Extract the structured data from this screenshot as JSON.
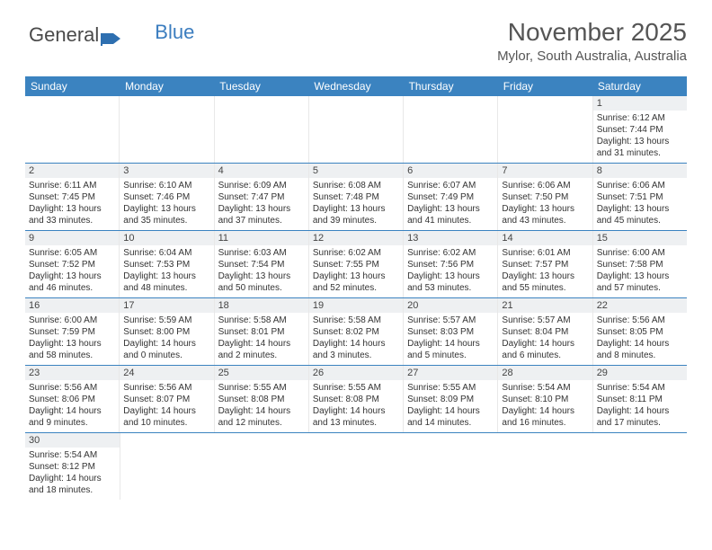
{
  "logo": {
    "part1": "General",
    "part2": "Blue"
  },
  "title": {
    "month": "November 2025",
    "location": "Mylor, South Australia, Australia"
  },
  "weekdays": [
    "Sunday",
    "Monday",
    "Tuesday",
    "Wednesday",
    "Thursday",
    "Friday",
    "Saturday"
  ],
  "colors": {
    "header_bg": "#3b83c0",
    "header_text": "#ffffff",
    "daynum_bg": "#eef0f2",
    "border": "#3b83c0",
    "text": "#333333"
  },
  "weeks": [
    [
      null,
      null,
      null,
      null,
      null,
      null,
      {
        "n": "1",
        "sr": "Sunrise: 6:12 AM",
        "ss": "Sunset: 7:44 PM",
        "d1": "Daylight: 13 hours",
        "d2": "and 31 minutes."
      }
    ],
    [
      {
        "n": "2",
        "sr": "Sunrise: 6:11 AM",
        "ss": "Sunset: 7:45 PM",
        "d1": "Daylight: 13 hours",
        "d2": "and 33 minutes."
      },
      {
        "n": "3",
        "sr": "Sunrise: 6:10 AM",
        "ss": "Sunset: 7:46 PM",
        "d1": "Daylight: 13 hours",
        "d2": "and 35 minutes."
      },
      {
        "n": "4",
        "sr": "Sunrise: 6:09 AM",
        "ss": "Sunset: 7:47 PM",
        "d1": "Daylight: 13 hours",
        "d2": "and 37 minutes."
      },
      {
        "n": "5",
        "sr": "Sunrise: 6:08 AM",
        "ss": "Sunset: 7:48 PM",
        "d1": "Daylight: 13 hours",
        "d2": "and 39 minutes."
      },
      {
        "n": "6",
        "sr": "Sunrise: 6:07 AM",
        "ss": "Sunset: 7:49 PM",
        "d1": "Daylight: 13 hours",
        "d2": "and 41 minutes."
      },
      {
        "n": "7",
        "sr": "Sunrise: 6:06 AM",
        "ss": "Sunset: 7:50 PM",
        "d1": "Daylight: 13 hours",
        "d2": "and 43 minutes."
      },
      {
        "n": "8",
        "sr": "Sunrise: 6:06 AM",
        "ss": "Sunset: 7:51 PM",
        "d1": "Daylight: 13 hours",
        "d2": "and 45 minutes."
      }
    ],
    [
      {
        "n": "9",
        "sr": "Sunrise: 6:05 AM",
        "ss": "Sunset: 7:52 PM",
        "d1": "Daylight: 13 hours",
        "d2": "and 46 minutes."
      },
      {
        "n": "10",
        "sr": "Sunrise: 6:04 AM",
        "ss": "Sunset: 7:53 PM",
        "d1": "Daylight: 13 hours",
        "d2": "and 48 minutes."
      },
      {
        "n": "11",
        "sr": "Sunrise: 6:03 AM",
        "ss": "Sunset: 7:54 PM",
        "d1": "Daylight: 13 hours",
        "d2": "and 50 minutes."
      },
      {
        "n": "12",
        "sr": "Sunrise: 6:02 AM",
        "ss": "Sunset: 7:55 PM",
        "d1": "Daylight: 13 hours",
        "d2": "and 52 minutes."
      },
      {
        "n": "13",
        "sr": "Sunrise: 6:02 AM",
        "ss": "Sunset: 7:56 PM",
        "d1": "Daylight: 13 hours",
        "d2": "and 53 minutes."
      },
      {
        "n": "14",
        "sr": "Sunrise: 6:01 AM",
        "ss": "Sunset: 7:57 PM",
        "d1": "Daylight: 13 hours",
        "d2": "and 55 minutes."
      },
      {
        "n": "15",
        "sr": "Sunrise: 6:00 AM",
        "ss": "Sunset: 7:58 PM",
        "d1": "Daylight: 13 hours",
        "d2": "and 57 minutes."
      }
    ],
    [
      {
        "n": "16",
        "sr": "Sunrise: 6:00 AM",
        "ss": "Sunset: 7:59 PM",
        "d1": "Daylight: 13 hours",
        "d2": "and 58 minutes."
      },
      {
        "n": "17",
        "sr": "Sunrise: 5:59 AM",
        "ss": "Sunset: 8:00 PM",
        "d1": "Daylight: 14 hours",
        "d2": "and 0 minutes."
      },
      {
        "n": "18",
        "sr": "Sunrise: 5:58 AM",
        "ss": "Sunset: 8:01 PM",
        "d1": "Daylight: 14 hours",
        "d2": "and 2 minutes."
      },
      {
        "n": "19",
        "sr": "Sunrise: 5:58 AM",
        "ss": "Sunset: 8:02 PM",
        "d1": "Daylight: 14 hours",
        "d2": "and 3 minutes."
      },
      {
        "n": "20",
        "sr": "Sunrise: 5:57 AM",
        "ss": "Sunset: 8:03 PM",
        "d1": "Daylight: 14 hours",
        "d2": "and 5 minutes."
      },
      {
        "n": "21",
        "sr": "Sunrise: 5:57 AM",
        "ss": "Sunset: 8:04 PM",
        "d1": "Daylight: 14 hours",
        "d2": "and 6 minutes."
      },
      {
        "n": "22",
        "sr": "Sunrise: 5:56 AM",
        "ss": "Sunset: 8:05 PM",
        "d1": "Daylight: 14 hours",
        "d2": "and 8 minutes."
      }
    ],
    [
      {
        "n": "23",
        "sr": "Sunrise: 5:56 AM",
        "ss": "Sunset: 8:06 PM",
        "d1": "Daylight: 14 hours",
        "d2": "and 9 minutes."
      },
      {
        "n": "24",
        "sr": "Sunrise: 5:56 AM",
        "ss": "Sunset: 8:07 PM",
        "d1": "Daylight: 14 hours",
        "d2": "and 10 minutes."
      },
      {
        "n": "25",
        "sr": "Sunrise: 5:55 AM",
        "ss": "Sunset: 8:08 PM",
        "d1": "Daylight: 14 hours",
        "d2": "and 12 minutes."
      },
      {
        "n": "26",
        "sr": "Sunrise: 5:55 AM",
        "ss": "Sunset: 8:08 PM",
        "d1": "Daylight: 14 hours",
        "d2": "and 13 minutes."
      },
      {
        "n": "27",
        "sr": "Sunrise: 5:55 AM",
        "ss": "Sunset: 8:09 PM",
        "d1": "Daylight: 14 hours",
        "d2": "and 14 minutes."
      },
      {
        "n": "28",
        "sr": "Sunrise: 5:54 AM",
        "ss": "Sunset: 8:10 PM",
        "d1": "Daylight: 14 hours",
        "d2": "and 16 minutes."
      },
      {
        "n": "29",
        "sr": "Sunrise: 5:54 AM",
        "ss": "Sunset: 8:11 PM",
        "d1": "Daylight: 14 hours",
        "d2": "and 17 minutes."
      }
    ],
    [
      {
        "n": "30",
        "sr": "Sunrise: 5:54 AM",
        "ss": "Sunset: 8:12 PM",
        "d1": "Daylight: 14 hours",
        "d2": "and 18 minutes."
      },
      null,
      null,
      null,
      null,
      null,
      null
    ]
  ]
}
